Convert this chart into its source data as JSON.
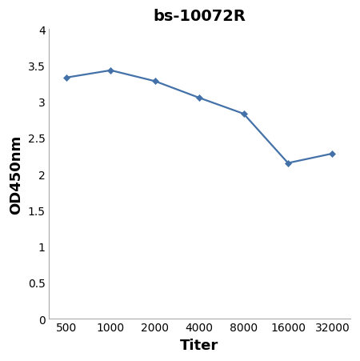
{
  "title": "bs-10072R",
  "xlabel": "Titer",
  "ylabel": "OD450nm",
  "x_values": [
    500,
    1000,
    2000,
    4000,
    8000,
    16000,
    32000
  ],
  "y_values": [
    3.33,
    3.43,
    3.28,
    3.05,
    2.83,
    2.15,
    2.28
  ],
  "line_color": "#4472a8",
  "marker": "D",
  "marker_size": 4,
  "line_width": 1.6,
  "ylim": [
    0,
    4.0
  ],
  "yticks": [
    0,
    0.5,
    1.0,
    1.5,
    2.0,
    2.5,
    3.0,
    3.5,
    4.0
  ],
  "ytick_labels": [
    "0",
    "0.5",
    "1",
    "1.5",
    "2",
    "2.5",
    "3",
    "3.5",
    "4"
  ],
  "xtick_labels": [
    "500",
    "1000",
    "2000",
    "4000",
    "8000",
    "16000",
    "32000"
  ],
  "title_fontsize": 14,
  "title_fontweight": "bold",
  "axis_label_fontsize": 13,
  "axis_label_fontweight": "bold",
  "tick_fontsize": 10,
  "background_color": "#ffffff",
  "spine_color": "#aaaaaa"
}
